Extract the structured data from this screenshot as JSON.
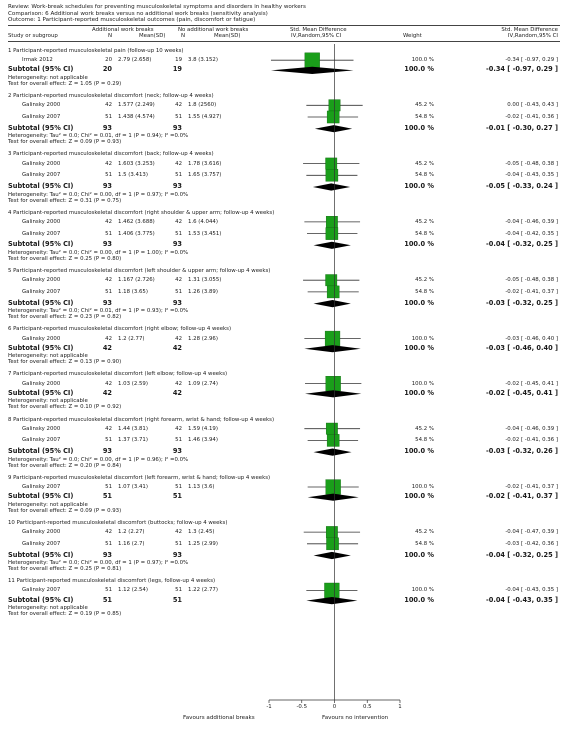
{
  "header": {
    "review": "Review:  Work-break schedules for preventing musculoskeletal symptoms and disorders in healthy workers",
    "comparison": "Comparison:  6 Additional work breaks versus no additional work breaks (sensitivity analysis)",
    "outcome": "Outcome:  1 Participant-reported musculoskeletal outcomes (pain, discomfort or fatigue)"
  },
  "columns": {
    "study": "Study or subgroup",
    "exp_group": "Additional work breaks",
    "exp_n": "N",
    "exp_mean": "Mean(SD)",
    "ctl_group": "No additional work breaks",
    "ctl_n": "N",
    "ctl_mean": "Mean(SD)",
    "smd": "Std. Mean Difference",
    "smd_method": "IV,Random,95% CI",
    "weight": "Weight",
    "smd2": "Std. Mean Difference",
    "smd2_method": "IV,Random,95% CI"
  },
  "footer": {
    "favours_left": "Favours additional breaks",
    "favours_right": "Favours no intervention"
  },
  "colors": {
    "marker": "#1a9e1a",
    "marker_edge": "#0f6a0f",
    "diamond": "#000000",
    "line": "#333333"
  },
  "chart_data": {
    "type": "forest",
    "xlim": [
      -1,
      1
    ],
    "xticks": [
      -1,
      -0.5,
      0,
      0.5,
      1
    ],
    "xtick_labels": [
      "-1",
      "-0.5",
      "0",
      "0.5",
      "1"
    ],
    "groups": [
      {
        "title": "1 Participant-reported musculoskeletal pain (follow-up 10 weeks)",
        "studies": [
          {
            "name": "Irmak 2012",
            "n1": "20",
            "ms1": "2.79 (2.658)",
            "n2": "19",
            "ms2": "3.8 (3.152)",
            "weight": "100.0 %",
            "ci_text": "-0.34 [ -0.97, 0.29 ]",
            "est": -0.34,
            "lo": -0.97,
            "hi": 0.29,
            "w": 100.0
          }
        ],
        "subtotal": {
          "label": "Subtotal (95% CI)",
          "n1": "20",
          "n2": "19",
          "weight": "100.0 %",
          "ci_text": "-0.34 [ -0.97, 0.29 ]",
          "est": -0.34,
          "lo": -0.97,
          "hi": 0.29
        },
        "heterogeneity": "Heterogeneity: not applicable",
        "test": "Test for overall effect: Z = 1.05 (P = 0.29)"
      },
      {
        "title": "2 Participant-reported musculoskeletal discomfort (neck; follow-up 4 weeks)",
        "studies": [
          {
            "name": "Galinsky 2000",
            "n1": "42",
            "ms1": "1.577 (2.249)",
            "n2": "42",
            "ms2": "1.8 (2560)",
            "weight": "45.2 %",
            "ci_text": "0.00 [ -0.43, 0.43 ]",
            "est": 0.0,
            "lo": -0.43,
            "hi": 0.43,
            "w": 45.2
          },
          {
            "name": "Galinsky 2007",
            "n1": "51",
            "ms1": "1.438 (4.574)",
            "n2": "51",
            "ms2": "1.55 (4.927)",
            "weight": "54.8 %",
            "ci_text": "-0.02 [ -0.41, 0.36 ]",
            "est": -0.02,
            "lo": -0.41,
            "hi": 0.36,
            "w": 54.8
          }
        ],
        "subtotal": {
          "label": "Subtotal (95% CI)",
          "n1": "93",
          "n2": "93",
          "weight": "100.0 %",
          "ci_text": "-0.01 [ -0.30, 0.27 ]",
          "est": -0.01,
          "lo": -0.3,
          "hi": 0.27
        },
        "heterogeneity": "Heterogeneity: Tau² = 0.0; Chi² = 0.01, df = 1 (P = 0.94); I² =0.0%",
        "test": "Test for overall effect: Z = 0.09 (P = 0.93)"
      },
      {
        "title": "3 Participant-reported musculoskeletal discomfort (back; follow-up 4 weeks)",
        "studies": [
          {
            "name": "Galinsky 2000",
            "n1": "42",
            "ms1": "1.603 (3.253)",
            "n2": "42",
            "ms2": "1.78 (3.616)",
            "weight": "45.2 %",
            "ci_text": "-0.05 [ -0.48, 0.38 ]",
            "est": -0.05,
            "lo": -0.48,
            "hi": 0.38,
            "w": 45.2
          },
          {
            "name": "Galinsky 2007",
            "n1": "51",
            "ms1": "1.5 (3.413)",
            "n2": "51",
            "ms2": "1.65 (3.757)",
            "weight": "54.8 %",
            "ci_text": "-0.04 [ -0.43, 0.35 ]",
            "est": -0.04,
            "lo": -0.43,
            "hi": 0.35,
            "w": 54.8
          }
        ],
        "subtotal": {
          "label": "Subtotal (95% CI)",
          "n1": "93",
          "n2": "93",
          "weight": "100.0 %",
          "ci_text": "-0.05 [ -0.33, 0.24 ]",
          "est": -0.05,
          "lo": -0.33,
          "hi": 0.24
        },
        "heterogeneity": "Heterogeneity: Tau² = 0.0; Chi² = 0.00, df = 1 (P = 0.97); I² =0.0%",
        "test": "Test for overall effect: Z = 0.31 (P = 0.75)"
      },
      {
        "title": "4 Participant-reported musculoskeletal discomfort (right shoulder & upper arm; follow-up 4 weeks)",
        "studies": [
          {
            "name": "Galinsky 2000",
            "n1": "42",
            "ms1": "1.462 (3.688)",
            "n2": "42",
            "ms2": "1.6 (4.044)",
            "weight": "45.2 %",
            "ci_text": "-0.04 [ -0.46, 0.39 ]",
            "est": -0.04,
            "lo": -0.46,
            "hi": 0.39,
            "w": 45.2
          },
          {
            "name": "Galinsky 2007",
            "n1": "51",
            "ms1": "1.406 (3.775)",
            "n2": "51",
            "ms2": "1.53 (3.451)",
            "weight": "54.8 %",
            "ci_text": "-0.04 [ -0.42, 0.35 ]",
            "est": -0.04,
            "lo": -0.42,
            "hi": 0.35,
            "w": 54.8
          }
        ],
        "subtotal": {
          "label": "Subtotal (95% CI)",
          "n1": "93",
          "n2": "93",
          "weight": "100.0 %",
          "ci_text": "-0.04 [ -0.32, 0.25 ]",
          "est": -0.04,
          "lo": -0.32,
          "hi": 0.25
        },
        "heterogeneity": "Heterogeneity: Tau² = 0.0; Chi² = 0.00, df = 1 (P = 1.00); I² =0.0%",
        "test": "Test for overall effect: Z = 0.25 (P = 0.80)"
      },
      {
        "title": "5 Participant-reported musculoskeletal discomfort (left shoulder & upper arm; follow-up 4 weeks)",
        "studies": [
          {
            "name": "Galinsky 2000",
            "n1": "42",
            "ms1": "1.167 (2.726)",
            "n2": "42",
            "ms2": "1.31 (3.055)",
            "weight": "45.2 %",
            "ci_text": "-0.05 [ -0.48, 0.38 ]",
            "est": -0.05,
            "lo": -0.48,
            "hi": 0.38,
            "w": 45.2
          },
          {
            "name": "Galinsky 2007",
            "n1": "51",
            "ms1": "1.18 (3.65)",
            "n2": "51",
            "ms2": "1.26 (3.89)",
            "weight": "54.8 %",
            "ci_text": "-0.02 [ -0.41, 0.37 ]",
            "est": -0.02,
            "lo": -0.41,
            "hi": 0.37,
            "w": 54.8
          }
        ],
        "subtotal": {
          "label": "Subtotal (95% CI)",
          "n1": "93",
          "n2": "93",
          "weight": "100.0 %",
          "ci_text": "-0.03 [ -0.32, 0.25 ]",
          "est": -0.03,
          "lo": -0.32,
          "hi": 0.25
        },
        "heterogeneity": "Heterogeneity: Tau² = 0.0; Chi² = 0.01, df = 1 (P = 0.93); I² =0.0%",
        "test": "Test for overall effect: Z = 0.23 (P = 0.82)"
      },
      {
        "title": "6 Participant-reported musculoskeletal discomfort (right elbow; follow-up 4 weeks)",
        "studies": [
          {
            "name": "Galinsky 2000",
            "n1": "42",
            "ms1": "1.2 (2.77)",
            "n2": "42",
            "ms2": "1.28 (2.96)",
            "weight": "100.0 %",
            "ci_text": "-0.03 [ -0.46, 0.40 ]",
            "est": -0.03,
            "lo": -0.46,
            "hi": 0.4,
            "w": 100.0
          }
        ],
        "subtotal": {
          "label": "Subtotal (95% CI)",
          "n1": "42",
          "n2": "42",
          "weight": "100.0 %",
          "ci_text": "-0.03 [ -0.46, 0.40 ]",
          "est": -0.03,
          "lo": -0.46,
          "hi": 0.4
        },
        "heterogeneity": "Heterogeneity: not applicable",
        "test": "Test for overall effect: Z = 0.13 (P = 0.90)"
      },
      {
        "title": "7 Participant-reported musculoskeletal discomfort (left elbow; follow-up 4 weeks)",
        "studies": [
          {
            "name": "Galinsky 2000",
            "n1": "42",
            "ms1": "1.03 (2.59)",
            "n2": "42",
            "ms2": "1.09 (2.74)",
            "weight": "100.0 %",
            "ci_text": "-0.02 [ -0.45, 0.41 ]",
            "est": -0.02,
            "lo": -0.45,
            "hi": 0.41,
            "w": 100.0
          }
        ],
        "subtotal": {
          "label": "Subtotal (95% CI)",
          "n1": "42",
          "n2": "42",
          "weight": "100.0 %",
          "ci_text": "-0.02 [ -0.45, 0.41 ]",
          "est": -0.02,
          "lo": -0.45,
          "hi": 0.41
        },
        "heterogeneity": "Heterogeneity: not applicable",
        "test": "Test for overall effect: Z = 0.10 (P = 0.92)"
      },
      {
        "title": "8 Participant-reported musculoskeletal discomfort (right forearm, wrist & hand; follow-up 4 weeks)",
        "studies": [
          {
            "name": "Galinsky 2000",
            "n1": "42",
            "ms1": "1.44 (3.81)",
            "n2": "42",
            "ms2": "1.59 (4.19)",
            "weight": "45.2 %",
            "ci_text": "-0.04 [ -0.46, 0.39 ]",
            "est": -0.04,
            "lo": -0.46,
            "hi": 0.39,
            "w": 45.2
          },
          {
            "name": "Galinsky 2007",
            "n1": "51",
            "ms1": "1.37 (3.71)",
            "n2": "51",
            "ms2": "1.46 (3.94)",
            "weight": "54.8 %",
            "ci_text": "-0.02 [ -0.41, 0.36 ]",
            "est": -0.02,
            "lo": -0.41,
            "hi": 0.36,
            "w": 54.8
          }
        ],
        "subtotal": {
          "label": "Subtotal (95% CI)",
          "n1": "93",
          "n2": "93",
          "weight": "100.0 %",
          "ci_text": "-0.03 [ -0.32, 0.26 ]",
          "est": -0.03,
          "lo": -0.32,
          "hi": 0.26
        },
        "heterogeneity": "Heterogeneity: Tau² = 0.0; Chi² = 0.00, df = 1 (P = 0.96); I² =0.0%",
        "test": "Test for overall effect: Z = 0.20 (P = 0.84)"
      },
      {
        "title": "9 Participant-reported musculoskeletal discomfort (left forearm, wrist & hand; follow-up 4 weeks)",
        "studies": [
          {
            "name": "Galinsky 2007",
            "n1": "51",
            "ms1": "1.07 (3.41)",
            "n2": "51",
            "ms2": "1.13 (3.6)",
            "weight": "100.0 %",
            "ci_text": "-0.02 [ -0.41, 0.37 ]",
            "est": -0.02,
            "lo": -0.41,
            "hi": 0.37,
            "w": 100.0
          }
        ],
        "subtotal": {
          "label": "Subtotal (95% CI)",
          "n1": "51",
          "n2": "51",
          "weight": "100.0 %",
          "ci_text": "-0.02 [ -0.41, 0.37 ]",
          "est": -0.02,
          "lo": -0.41,
          "hi": 0.37
        },
        "heterogeneity": "Heterogeneity: not applicable",
        "test": "Test for overall effect: Z = 0.09 (P = 0.93)"
      },
      {
        "title": "10 Participant-reported musculoskeletal discomfort (buttocks; follow-up 4 weeks)",
        "studies": [
          {
            "name": "Galinsky 2000",
            "n1": "42",
            "ms1": "1.2 (2.27)",
            "n2": "42",
            "ms2": "1.3 (2.45)",
            "weight": "45.2 %",
            "ci_text": "-0.04 [ -0.47, 0.39 ]",
            "est": -0.04,
            "lo": -0.47,
            "hi": 0.39,
            "w": 45.2
          },
          {
            "name": "Galinsky 2007",
            "n1": "51",
            "ms1": "1.16 (2.7)",
            "n2": "51",
            "ms2": "1.25 (2.99)",
            "weight": "54.8 %",
            "ci_text": "-0.03 [ -0.42, 0.36 ]",
            "est": -0.03,
            "lo": -0.42,
            "hi": 0.36,
            "w": 54.8
          }
        ],
        "subtotal": {
          "label": "Subtotal (95% CI)",
          "n1": "93",
          "n2": "93",
          "weight": "100.0 %",
          "ci_text": "-0.04 [ -0.32, 0.25 ]",
          "est": -0.04,
          "lo": -0.32,
          "hi": 0.25
        },
        "heterogeneity": "Heterogeneity: Tau² = 0.0; Chi² = 0.00, df = 1 (P = 0.97); I² =0.0%",
        "test": "Test for overall effect: Z = 0.25 (P = 0.81)"
      },
      {
        "title": "11 Participant-reported musculoskeletal discomfort (legs, follow-up 4 weeks)",
        "studies": [
          {
            "name": "Galinsky 2007",
            "n1": "51",
            "ms1": "1.12 (2.54)",
            "n2": "51",
            "ms2": "1.22 (2.77)",
            "weight": "100.0 %",
            "ci_text": "-0.04 [ -0.43, 0.35 ]",
            "est": -0.04,
            "lo": -0.43,
            "hi": 0.35,
            "w": 100.0
          }
        ],
        "subtotal": {
          "label": "Subtotal (95% CI)",
          "n1": "51",
          "n2": "51",
          "weight": "100.0 %",
          "ci_text": "-0.04 [ -0.43, 0.35 ]",
          "est": -0.04,
          "lo": -0.43,
          "hi": 0.35
        },
        "heterogeneity": "Heterogeneity: not applicable",
        "test": "Test for overall effect: Z = 0.19 (P = 0.85)"
      }
    ]
  }
}
